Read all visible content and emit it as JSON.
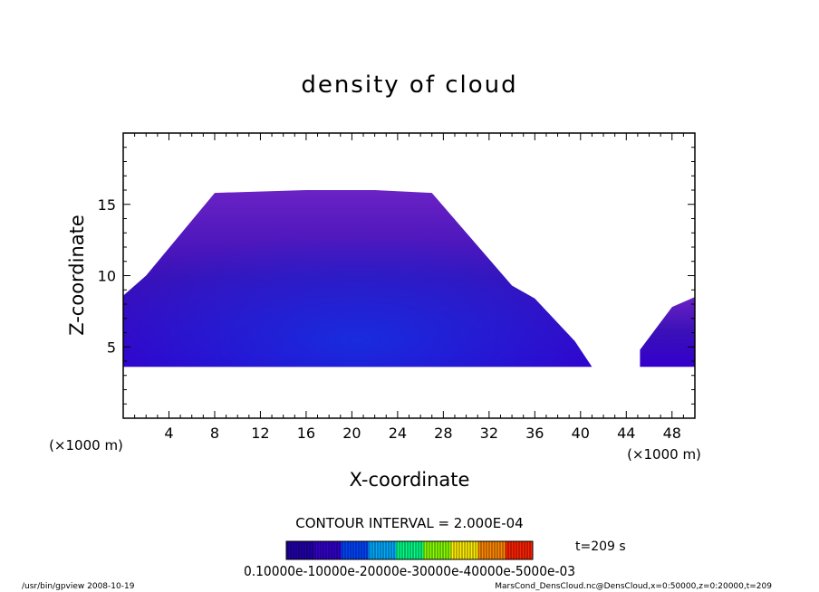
{
  "chart_data": {
    "type": "heatmap",
    "title": "density of cloud",
    "xlabel": "X-coordinate",
    "ylabel": "Z-coordinate",
    "x_unit_left": "(×1000 m)",
    "x_unit_right": "(×1000 m)",
    "xlim": [
      0,
      50
    ],
    "ylim": [
      0,
      20
    ],
    "x_ticks": [
      4,
      8,
      12,
      16,
      20,
      24,
      28,
      32,
      36,
      40,
      44,
      48
    ],
    "y_ticks": [
      5,
      10,
      15
    ],
    "x_minor_step": 1,
    "y_minor_step": 1,
    "cloud_regions": [
      {
        "name": "main",
        "polygon": [
          [
            0,
            3.6
          ],
          [
            0,
            8.6
          ],
          [
            2,
            10.0
          ],
          [
            8,
            15.8
          ],
          [
            16,
            16.0
          ],
          [
            22,
            16.0
          ],
          [
            27,
            15.8
          ],
          [
            34,
            9.3
          ],
          [
            36,
            8.4
          ],
          [
            39.5,
            5.4
          ],
          [
            41,
            3.6
          ]
        ]
      },
      {
        "name": "right",
        "polygon": [
          [
            45.2,
            3.6
          ],
          [
            45.2,
            4.8
          ],
          [
            48,
            7.8
          ],
          [
            50,
            8.5
          ],
          [
            50,
            3.6
          ]
        ]
      }
    ],
    "colormap": [
      "#2200aa",
      "#3300cc",
      "#0044ff",
      "#00aaff",
      "#00ff88",
      "#88ff00",
      "#ffee00",
      "#ff8800",
      "#ff2200"
    ],
    "contour_interval_text": "CONTOUR INTERVAL = 2.000E-04",
    "colorbar_labels_text": "0.10000e-10000e-20000e-30000e-40000e-5000e-03",
    "time_text": "t=209 s"
  },
  "footer": {
    "left": "/usr/bin/gpview  2008-10-19",
    "right": "MarsCond_DensCloud.nc@DensCloud,x=0:50000,z=0:20000,t=209"
  }
}
